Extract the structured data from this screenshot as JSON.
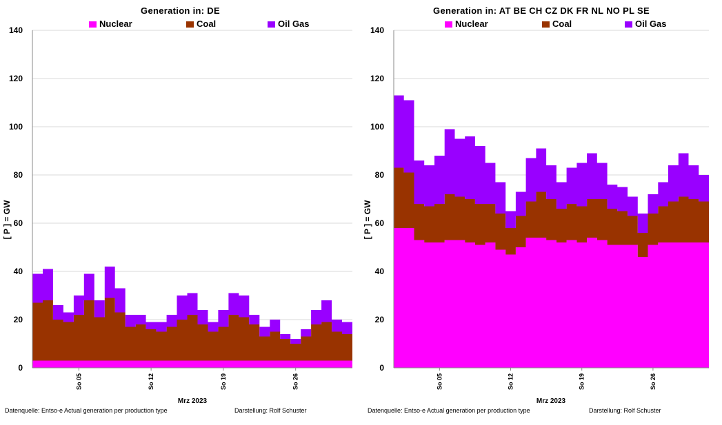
{
  "charts": [
    {
      "title": "Generation  in: DE",
      "legend": [
        {
          "name": "Nuclear",
          "color": "#ff00ff"
        },
        {
          "name": "Coal",
          "color": "#993300"
        },
        {
          "name": "Oil Gas",
          "color": "#9900ff"
        }
      ],
      "ylabel": "[ P ] = GW",
      "yticks": [
        "0",
        "20",
        "40",
        "60",
        "80",
        "100",
        "120",
        "140"
      ],
      "xticks": [
        "So 05",
        "So 12",
        "So 19",
        "So 26"
      ],
      "xlabel": "Mrz 2023",
      "source": "Datenquelle: Entso-e  Actual generation per production type",
      "credit": "Darstellung:  Rolf Schuster"
    },
    {
      "title": "Generation  in:  AT   BE   CH   CZ   DK   FR   NL   NO   PL   SE",
      "legend": [
        {
          "name": "Nuclear",
          "color": "#ff00ff"
        },
        {
          "name": "Coal",
          "color": "#993300"
        },
        {
          "name": "Oil Gas",
          "color": "#9900ff"
        }
      ],
      "ylabel": "[ P ] = GW",
      "yticks": [
        "0",
        "20",
        "40",
        "60",
        "80",
        "100",
        "120",
        "140"
      ],
      "xticks": [
        "So 05",
        "So 12",
        "So 19",
        "So 26"
      ],
      "xlabel": "Mrz 2023",
      "source": "Datenquelle: Entso-e  Actual generation per production type",
      "credit": "Darstellung:  Rolf Schuster"
    }
  ],
  "chart_data": [
    {
      "type": "area",
      "stacked": true,
      "title": "Generation  in: DE",
      "ylabel": "[ P ] = GW",
      "xlabel": "Mrz 2023",
      "ylim": [
        0,
        140
      ],
      "grid": true,
      "legend_position": "top",
      "x": [
        1,
        2,
        3,
        4,
        5,
        6,
        7,
        8,
        9,
        10,
        11,
        12,
        13,
        14,
        15,
        16,
        17,
        18,
        19,
        20,
        21,
        22,
        23,
        24,
        25,
        26,
        27,
        28,
        29,
        30,
        31
      ],
      "series": [
        {
          "name": "Nuclear",
          "color": "#ff00ff",
          "values": [
            3,
            3,
            3,
            3,
            3,
            3,
            3,
            3,
            3,
            3,
            3,
            3,
            3,
            3,
            3,
            3,
            3,
            3,
            3,
            3,
            3,
            3,
            3,
            3,
            3,
            3,
            3,
            3,
            3,
            3,
            3
          ]
        },
        {
          "name": "Coal",
          "color": "#993300",
          "values": [
            24,
            25,
            17,
            16,
            19,
            25,
            18,
            26,
            20,
            14,
            15,
            13,
            12,
            14,
            17,
            19,
            15,
            12,
            14,
            19,
            18,
            15,
            10,
            12,
            9,
            7,
            10,
            15,
            16,
            12,
            11
          ]
        },
        {
          "name": "Oil Gas",
          "color": "#9900ff",
          "values": [
            12,
            13,
            6,
            4,
            8,
            11,
            7,
            13,
            10,
            5,
            4,
            3,
            4,
            5,
            10,
            9,
            6,
            4,
            7,
            9,
            9,
            4,
            4,
            5,
            2,
            2,
            3,
            6,
            9,
            5,
            5
          ]
        }
      ]
    },
    {
      "type": "area",
      "stacked": true,
      "title": "Generation  in:  AT   BE   CH   CZ   DK   FR   NL   NO   PL   SE",
      "ylabel": "[ P ] = GW",
      "xlabel": "Mrz 2023",
      "ylim": [
        0,
        140
      ],
      "grid": true,
      "legend_position": "top",
      "x": [
        1,
        2,
        3,
        4,
        5,
        6,
        7,
        8,
        9,
        10,
        11,
        12,
        13,
        14,
        15,
        16,
        17,
        18,
        19,
        20,
        21,
        22,
        23,
        24,
        25,
        26,
        27,
        28,
        29,
        30,
        31
      ],
      "series": [
        {
          "name": "Nuclear",
          "color": "#ff00ff",
          "values": [
            58,
            58,
            53,
            52,
            52,
            53,
            53,
            52,
            51,
            52,
            49,
            47,
            50,
            54,
            54,
            53,
            52,
            53,
            52,
            54,
            53,
            51,
            51,
            51,
            46,
            51,
            52,
            52,
            52,
            52,
            52
          ]
        },
        {
          "name": "Coal",
          "color": "#993300",
          "values": [
            25,
            23,
            15,
            15,
            16,
            19,
            18,
            18,
            17,
            16,
            15,
            11,
            13,
            15,
            19,
            17,
            14,
            15,
            15,
            16,
            17,
            15,
            14,
            12,
            10,
            13,
            15,
            17,
            19,
            18,
            17
          ]
        },
        {
          "name": "Oil Gas",
          "color": "#9900ff",
          "values": [
            30,
            30,
            18,
            17,
            20,
            27,
            24,
            26,
            24,
            17,
            13,
            7,
            10,
            18,
            18,
            14,
            11,
            15,
            18,
            19,
            15,
            10,
            10,
            8,
            8,
            8,
            10,
            15,
            18,
            14,
            11
          ]
        }
      ]
    }
  ]
}
